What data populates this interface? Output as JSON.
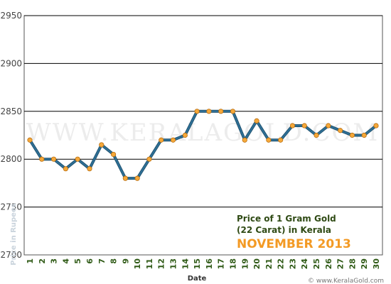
{
  "watermark": "WWW.KERALAGOLD.COM",
  "footer_credit": "© www.KeralaGold.com",
  "chart_data": {
    "type": "line",
    "title": "",
    "annotation_lines": [
      "Price of 1 Gram Gold",
      "(22 Carat) in Kerala"
    ],
    "annotation_period": "NOVEMBER 2013",
    "xlabel": "Date",
    "ylabel": "Price in Rupees",
    "ylim": [
      2700,
      2950
    ],
    "yticks": [
      2700,
      2750,
      2800,
      2850,
      2900,
      2950
    ],
    "grid": true,
    "categories": [
      "1",
      "2",
      "3",
      "4",
      "5",
      "6",
      "7",
      "8",
      "9",
      "10",
      "11",
      "12",
      "13",
      "14",
      "15",
      "16",
      "17",
      "18",
      "19",
      "20",
      "21",
      "22",
      "23",
      "24",
      "25",
      "26",
      "27",
      "28",
      "29",
      "30"
    ],
    "series": [
      {
        "values": [
          2820,
          2800,
          2800,
          2790,
          2800,
          2790,
          2815,
          2805,
          2780,
          2780,
          2800,
          2820,
          2820,
          2825,
          2850,
          2850,
          2850,
          2850,
          2820,
          2840,
          2820,
          2820,
          2835,
          2835,
          2825,
          2835,
          2830,
          2825,
          2825,
          2835
        ]
      }
    ],
    "colors": {
      "line": "#2e6f95",
      "marker": "#f5a83a",
      "marker_stroke": "#b86e10",
      "grid": "#000000"
    }
  }
}
